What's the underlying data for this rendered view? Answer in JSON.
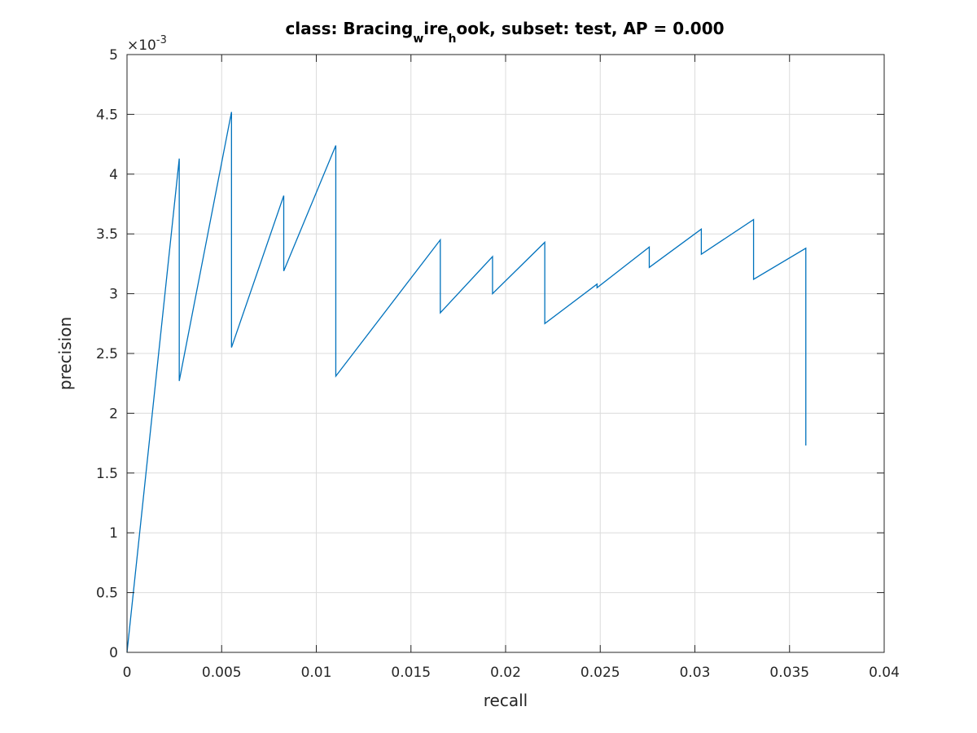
{
  "chart_data": {
    "type": "line",
    "title": {
      "prefix": "class: Bracing",
      "sub1": "w",
      "mid": "ire",
      "sub2": "h",
      "suffix": "ook, subset: test, AP = 0.000"
    },
    "xlabel": "recall",
    "ylabel": "precision",
    "xlim": [
      0,
      0.04
    ],
    "ylim": [
      0,
      0.005
    ],
    "y_exponent_label": {
      "base": "×10",
      "exponent": "-3"
    },
    "xticks": [
      0,
      0.005,
      0.01,
      0.015,
      0.02,
      0.025,
      0.03,
      0.035,
      0.04
    ],
    "xtick_labels": [
      "0",
      "0.005",
      "0.01",
      "0.015",
      "0.02",
      "0.025",
      "0.03",
      "0.035",
      "0.04"
    ],
    "yticks": [
      0,
      0.0005,
      0.001,
      0.0015,
      0.002,
      0.0025,
      0.003,
      0.0035,
      0.004,
      0.0045,
      0.005
    ],
    "ytick_labels": [
      "0",
      "0.5",
      "1",
      "1.5",
      "2",
      "2.5",
      "3",
      "3.5",
      "4",
      "4.5",
      "5"
    ],
    "grid": true,
    "series": [
      {
        "color": "#0072bd",
        "x": [
          0,
          0.00276,
          0.00276,
          0.00552,
          0.00552,
          0.00828,
          0.00828,
          0.01103,
          0.01103,
          0.01655,
          0.01655,
          0.01931,
          0.01931,
          0.02207,
          0.02207,
          0.02483,
          0.02483,
          0.02759,
          0.02759,
          0.03034,
          0.03034,
          0.0331,
          0.0331,
          0.03586,
          0.03586
        ],
        "y": [
          0,
          0.00413,
          0.00227,
          0.00452,
          0.00255,
          0.00382,
          0.00319,
          0.00424,
          0.00231,
          0.00345,
          0.00284,
          0.00331,
          0.003,
          0.00343,
          0.00275,
          0.00308,
          0.00305,
          0.00339,
          0.00322,
          0.00354,
          0.00333,
          0.00362,
          0.00312,
          0.00338,
          0.00173
        ]
      }
    ]
  }
}
